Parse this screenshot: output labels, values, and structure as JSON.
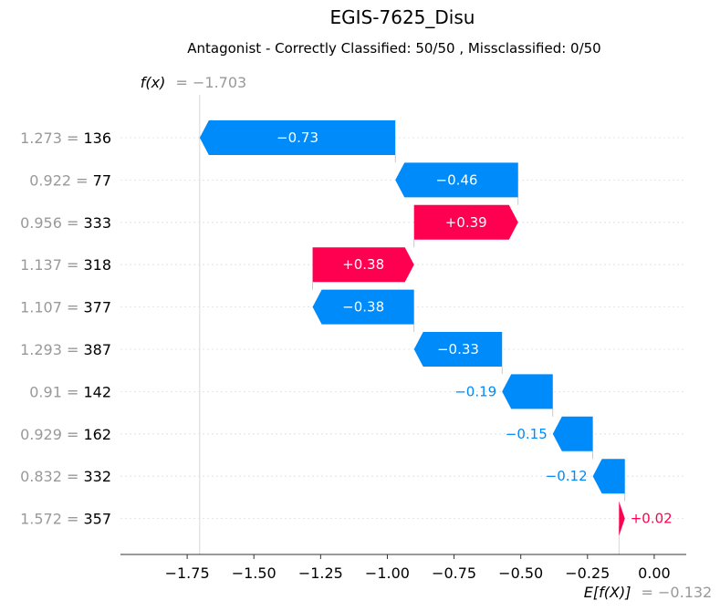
{
  "chart_data": {
    "type": "waterfall",
    "title": "EGIS-7625_Disu",
    "subtitle": "Antagonist - Correctly Classified: 50/50 , Missclassified: 0/50",
    "fx": {
      "label": "f(x)",
      "value_text": "= −1.703",
      "value": -1.703
    },
    "ex": {
      "label": "E[f(X)]",
      "value_text": "= −0.132",
      "value": -0.132
    },
    "xlim": [
      -2.0,
      0.12
    ],
    "xticks": [
      -1.75,
      -1.5,
      -1.25,
      -1.0,
      -0.75,
      -0.5,
      -0.25,
      0.0
    ],
    "xtick_labels": [
      "−1.75",
      "−1.50",
      "−1.25",
      "−1.00",
      "−0.75",
      "−0.50",
      "−0.25",
      "0.00"
    ],
    "features": [
      {
        "value": "1.273",
        "name": "136",
        "contribution": -0.73,
        "label": "−0.73",
        "start": -0.97,
        "end": -1.703
      },
      {
        "value": "0.922",
        "name": "77",
        "contribution": -0.46,
        "label": "−0.46",
        "start": -0.51,
        "end": -0.97
      },
      {
        "value": "0.956",
        "name": "333",
        "contribution": 0.39,
        "label": "+0.39",
        "start": -0.9,
        "end": -0.51
      },
      {
        "value": "1.137",
        "name": "318",
        "contribution": 0.38,
        "label": "+0.38",
        "start": -1.28,
        "end": -0.9
      },
      {
        "value": "1.107",
        "name": "377",
        "contribution": -0.38,
        "label": "−0.38",
        "start": -0.9,
        "end": -1.28
      },
      {
        "value": "1.293",
        "name": "387",
        "contribution": -0.33,
        "label": "−0.33",
        "start": -0.57,
        "end": -0.9
      },
      {
        "value": "0.91",
        "name": "142",
        "contribution": -0.19,
        "label": "−0.19",
        "start": -0.38,
        "end": -0.57
      },
      {
        "value": "0.929",
        "name": "162",
        "contribution": -0.15,
        "label": "−0.15",
        "start": -0.23,
        "end": -0.38
      },
      {
        "value": "0.832",
        "name": "332",
        "contribution": -0.12,
        "label": "−0.12",
        "start": -0.11,
        "end": -0.23
      },
      {
        "value": "1.572",
        "name": "357",
        "contribution": 0.02,
        "label": "+0.02",
        "start": -0.132,
        "end": -0.11
      }
    ],
    "colors": {
      "positive": "#ff0051",
      "negative": "#008bfb",
      "muted": "#999999",
      "grid": "#cccccc"
    }
  }
}
